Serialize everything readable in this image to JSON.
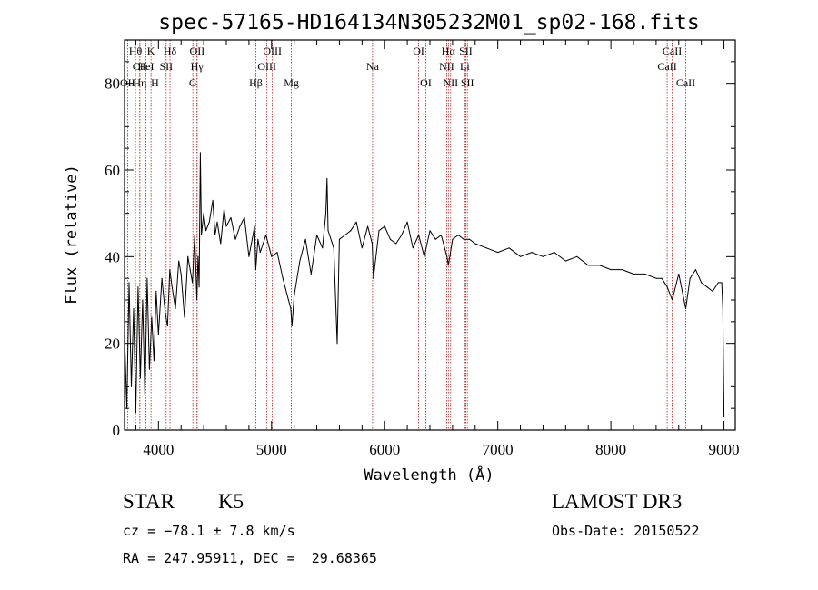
{
  "chart_data": {
    "type": "line",
    "title": "spec-57165-HD164134N305232M01_sp02-168.fits",
    "xlabel": "Wavelength (Å)",
    "ylabel": "Flux (relative)",
    "xlim": [
      3700,
      9100
    ],
    "ylim": [
      0,
      90
    ],
    "xticks": [
      4000,
      5000,
      6000,
      7000,
      8000,
      9000
    ],
    "yticks": [
      0,
      20,
      40,
      60,
      80
    ],
    "xtick_labels": [
      "4000",
      "5000",
      "6000",
      "7000",
      "8000",
      "9000"
    ],
    "ytick_labels": [
      "0",
      "20",
      "40",
      "60",
      "80"
    ],
    "series": [
      {
        "name": "flux",
        "x": [
          3700,
          3720,
          3740,
          3760,
          3780,
          3800,
          3820,
          3840,
          3860,
          3880,
          3900,
          3920,
          3940,
          3960,
          3980,
          4000,
          4030,
          4060,
          4080,
          4100,
          4120,
          4150,
          4180,
          4200,
          4230,
          4260,
          4280,
          4300,
          4320,
          4340,
          4350,
          4360,
          4370,
          4380,
          4400,
          4420,
          4450,
          4480,
          4500,
          4520,
          4550,
          4580,
          4600,
          4640,
          4680,
          4720,
          4760,
          4800,
          4850,
          4860,
          4880,
          4900,
          4950,
          5000,
          5050,
          5100,
          5150,
          5170,
          5180,
          5200,
          5250,
          5300,
          5350,
          5400,
          5450,
          5480,
          5490,
          5500,
          5550,
          5580,
          5600,
          5650,
          5700,
          5750,
          5800,
          5850,
          5890,
          5900,
          5950,
          6000,
          6050,
          6100,
          6150,
          6200,
          6250,
          6300,
          6350,
          6400,
          6450,
          6500,
          6550,
          6563,
          6600,
          6650,
          6700,
          6750,
          6800,
          6900,
          7000,
          7100,
          7200,
          7300,
          7400,
          7500,
          7600,
          7700,
          7800,
          7900,
          8000,
          8100,
          8200,
          8300,
          8400,
          8450,
          8498,
          8542,
          8600,
          8662,
          8700,
          8750,
          8800,
          8850,
          8900,
          8950,
          8980,
          8990,
          9000
        ],
        "y": [
          22,
          5,
          34,
          10,
          28,
          4,
          33,
          12,
          30,
          8,
          35,
          14,
          26,
          16,
          32,
          22,
          35,
          27,
          24,
          37,
          33,
          28,
          39,
          36,
          26,
          40,
          37,
          34,
          45,
          30,
          40,
          33,
          64,
          45,
          50,
          46,
          48,
          53,
          45,
          48,
          43,
          51,
          47,
          49,
          44,
          47,
          49,
          40,
          47,
          37,
          44,
          41,
          45,
          40,
          41,
          35,
          30,
          28,
          24,
          31,
          39,
          44,
          36,
          45,
          42,
          50,
          58,
          46,
          42,
          20,
          44,
          45,
          46,
          48,
          42,
          47,
          43,
          35,
          46,
          47,
          44,
          43,
          45,
          48,
          42,
          45,
          40,
          46,
          44,
          45,
          40,
          38,
          44,
          45,
          44,
          44,
          43,
          42,
          41,
          42,
          40,
          41,
          40,
          41,
          39,
          40,
          38,
          38,
          37,
          37,
          36,
          36,
          35,
          35,
          33,
          30,
          36,
          28,
          35,
          37,
          34,
          33,
          32,
          34,
          34,
          28,
          3
        ]
      }
    ],
    "spectral_lines": [
      {
        "label": "Hθ",
        "x": 3797,
        "row": 1
      },
      {
        "label": "CII",
        "x": 3835,
        "row": 2
      },
      {
        "label": "OII",
        "x": 3727,
        "row": 3
      },
      {
        "label": "K",
        "x": 3934,
        "row": 1
      },
      {
        "label": "HeI",
        "x": 3889,
        "row": 2
      },
      {
        "label": "Hη",
        "x": 3835,
        "row": 3
      },
      {
        "label": "H",
        "x": 3969,
        "row": 3
      },
      {
        "label": "SII",
        "x": 4068,
        "row": 2
      },
      {
        "label": "Hδ",
        "x": 4102,
        "row": 1
      },
      {
        "label": "OII",
        "x": 4342,
        "row": 1
      },
      {
        "label": "Hγ",
        "x": 4340,
        "row": 2
      },
      {
        "label": "G",
        "x": 4304,
        "row": 3
      },
      {
        "label": "Hβ",
        "x": 4861,
        "row": 3
      },
      {
        "label": "OIII",
        "x": 5007,
        "row": 1
      },
      {
        "label": "OIII",
        "x": 4959,
        "row": 2
      },
      {
        "label": "Mg",
        "x": 5175,
        "row": 3
      },
      {
        "label": "Na",
        "x": 5893,
        "row": 2
      },
      {
        "label": "OI",
        "x": 6300,
        "row": 1
      },
      {
        "label": "OI",
        "x": 6364,
        "row": 3
      },
      {
        "label": "Hα",
        "x": 6563,
        "row": 1
      },
      {
        "label": "NII",
        "x": 6548,
        "row": 2
      },
      {
        "label": "NII",
        "x": 6583,
        "row": 3
      },
      {
        "label": "SII",
        "x": 6717,
        "row": 1
      },
      {
        "label": "Li",
        "x": 6708,
        "row": 2
      },
      {
        "label": "SII",
        "x": 6731,
        "row": 3
      },
      {
        "label": "CaII",
        "x": 8542,
        "row": 1
      },
      {
        "label": "CaII",
        "x": 8498,
        "row": 2
      },
      {
        "label": "CaII",
        "x": 8662,
        "row": 3
      }
    ]
  },
  "info": {
    "class": "STAR",
    "subclass": "K5",
    "survey": "LAMOST DR3",
    "cz": "cz = −78.1 ± 7.8 km/s",
    "obs_date": "Obs-Date: 20150522",
    "coords": "RA = 247.95911, DEC =  29.68365"
  }
}
